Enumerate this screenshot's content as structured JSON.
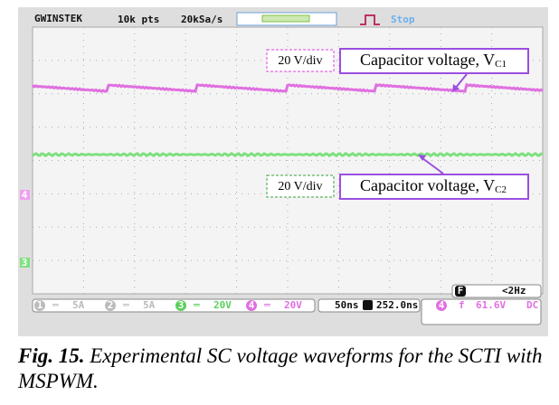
{
  "scope": {
    "brand": "GWINSTEK",
    "points": "10k pts",
    "rate": "20kSa/s",
    "status": "Stop"
  },
  "annotations": [
    {
      "scale": "20 V/div",
      "label": "Capacitor voltage, V",
      "subscript": "C1"
    },
    {
      "scale": "20 V/div",
      "label": "Capacitor voltage, V",
      "subscript": "C2"
    }
  ],
  "channels": [
    {
      "number": "1",
      "coupling": "═",
      "scale": "5A"
    },
    {
      "number": "2",
      "coupling": "═",
      "scale": "5A"
    },
    {
      "number": "3",
      "coupling": "═",
      "scale": "20V"
    },
    {
      "number": "4",
      "coupling": "═",
      "scale": "20V"
    }
  ],
  "timebase": "50ns",
  "position": "252.0ns",
  "trigger": {
    "source": "F",
    "frequency": "<2Hz",
    "channel": "4",
    "slope": "f",
    "level": "61.6V",
    "coupling": "DC"
  },
  "caption": {
    "label": "Fig. 15.",
    "text": "Experimental SC voltage waveforms for the SCTI with MSPWM."
  }
}
